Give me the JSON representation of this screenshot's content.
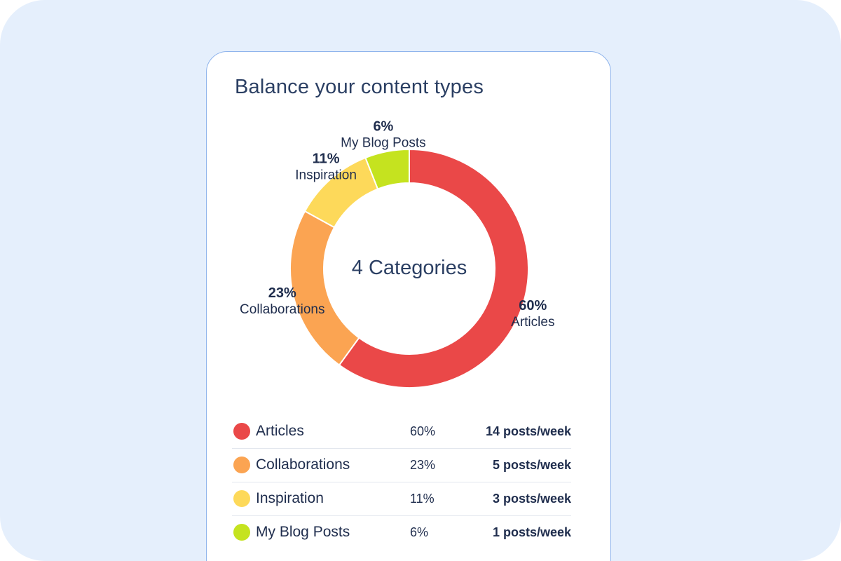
{
  "card": {
    "title": "Balance your content types"
  },
  "chart_data": {
    "type": "pie",
    "center_label": "4 Categories",
    "series": [
      {
        "name": "Articles",
        "value": 60,
        "label": "60%",
        "color": "#ea4848"
      },
      {
        "name": "Collaborations",
        "value": 23,
        "label": "23%",
        "color": "#fba452"
      },
      {
        "name": "Inspiration",
        "value": 11,
        "label": "11%",
        "color": "#fdd95a"
      },
      {
        "name": "My Blog Posts",
        "value": 6,
        "label": "6%",
        "color": "#c5e31f"
      }
    ]
  },
  "legend": {
    "rows": [
      {
        "name": "Articles",
        "pct": "60%",
        "rate": "14 posts/week",
        "color": "#ea4848"
      },
      {
        "name": "Collaborations",
        "pct": "23%",
        "rate": "5 posts/week",
        "color": "#fba452"
      },
      {
        "name": "Inspiration",
        "pct": "11%",
        "rate": "3 posts/week",
        "color": "#fdd95a"
      },
      {
        "name": "My Blog Posts",
        "pct": "6%",
        "rate": "1 posts/week",
        "color": "#c5e31f"
      }
    ]
  }
}
